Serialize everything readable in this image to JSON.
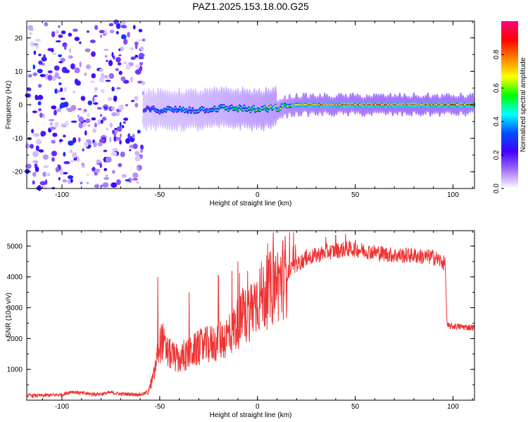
{
  "title": "PAZ1.2025.153.18.00.G25",
  "top_panel": {
    "xlabel": "Height of straight line (km)",
    "ylabel": "Frequency (Hz)",
    "x_ticks": [
      "-100",
      "-50",
      "0",
      "50",
      "100"
    ],
    "y_ticks": [
      "20",
      "10",
      "0",
      "-10",
      "-20"
    ]
  },
  "colorbar": {
    "label": "Normalized spectral amplitude",
    "ticks": [
      "0.0",
      "0.2",
      "0.4",
      "0.6",
      "0.8"
    ],
    "colors": [
      "#ffffff",
      "#a070ff",
      "#4000ff",
      "#0050ff",
      "#00ffff",
      "#00ff00",
      "#ffff00",
      "#ff8000",
      "#ff0000",
      "#ff0080"
    ]
  },
  "bottom_panel": {
    "xlabel": "Height of straight line (km)",
    "ylabel": "SNR (10 * v/v)",
    "x_ticks": [
      "-100",
      "-50",
      "0",
      "50",
      "100"
    ],
    "y_ticks": [
      "1000",
      "2000",
      "3000",
      "4000",
      "5000"
    ],
    "line_color": "#ee3333"
  },
  "chart_data": [
    {
      "type": "heatmap",
      "title": "PAZ1.2025.153.18.00.G25",
      "xlabel": "Height of straight line (km)",
      "ylabel": "Frequency (Hz)",
      "xlim": [
        -118,
        111
      ],
      "ylim": [
        -25,
        25
      ],
      "zlabel": "Normalized spectral amplitude",
      "zlim": [
        0,
        1
      ],
      "ridge": {
        "x": [
          -58,
          -50,
          -40,
          -30,
          -20,
          -10,
          0,
          10,
          20,
          40,
          60,
          80,
          100,
          111
        ],
        "freq": [
          -1.5,
          -1.5,
          -1.5,
          -1.5,
          -1.0,
          -1.0,
          -1.5,
          -1.0,
          0,
          0,
          0,
          0,
          0,
          0
        ],
        "amplitude": [
          0.35,
          0.4,
          0.42,
          0.45,
          0.5,
          0.55,
          0.6,
          0.65,
          0.8,
          0.85,
          0.88,
          0.9,
          0.88,
          0.85
        ]
      },
      "noise_region_x": [
        -118,
        -58
      ]
    },
    {
      "type": "line",
      "xlabel": "Height of straight line (km)",
      "ylabel": "SNR (10 * v/v)",
      "xlim": [
        -118,
        111
      ],
      "ylim": [
        0,
        5500
      ],
      "series": [
        {
          "x": [
            -118,
            -110,
            -100,
            -95,
            -90,
            -85,
            -80,
            -75,
            -70,
            -65,
            -60,
            -56,
            -53,
            -51,
            -49,
            -47,
            -45,
            -40,
            -35,
            -30,
            -25,
            -20,
            -15,
            -10,
            -5,
            0,
            5,
            10,
            15,
            20,
            25,
            30,
            35,
            40,
            45,
            50,
            55,
            60,
            65,
            70,
            75,
            80,
            85,
            90,
            94,
            96,
            97,
            100,
            105,
            111
          ],
          "y": [
            150,
            150,
            180,
            280,
            230,
            200,
            200,
            250,
            200,
            200,
            180,
            250,
            800,
            1500,
            2000,
            1600,
            1500,
            1300,
            1500,
            1700,
            1800,
            1900,
            2100,
            2500,
            2800,
            3300,
            3500,
            3800,
            4100,
            4400,
            4600,
            4700,
            4800,
            4850,
            4900,
            4900,
            4850,
            4800,
            4750,
            4700,
            4700,
            4700,
            4650,
            4650,
            4500,
            4400,
            2400,
            2400,
            2380,
            2350
          ]
        }
      ],
      "spikes": [
        {
          "x": -51,
          "y": 4000
        },
        {
          "x": -35,
          "y": 3500
        },
        {
          "x": -20,
          "y": 4050
        },
        {
          "x": -13,
          "y": 4200
        },
        {
          "x": -10,
          "y": 4500
        },
        {
          "x": -5,
          "y": 4200
        },
        {
          "x": 25,
          "y": 4900
        },
        {
          "x": 35,
          "y": 5300
        },
        {
          "x": 40,
          "y": 5350
        },
        {
          "x": 45,
          "y": 5400
        },
        {
          "x": 50,
          "y": 5200
        }
      ]
    }
  ]
}
